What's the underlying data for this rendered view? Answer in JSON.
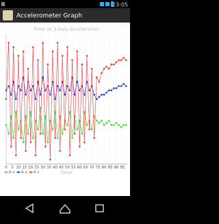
{
  "status_bar": {
    "time": "23:05"
  },
  "app_bar": {
    "title": "Accelerometer Graph"
  },
  "chart_data": {
    "type": "line",
    "title": "Time vs 3-Axis Acceleration",
    "x_label": "Time",
    "x": [
      0,
      2,
      4,
      6,
      8,
      10,
      12,
      14,
      16,
      18,
      20,
      22,
      24,
      26,
      28,
      30,
      32,
      34,
      36,
      38,
      40,
      42,
      44,
      46,
      48,
      50,
      52,
      54,
      56,
      58,
      60,
      62,
      64,
      66,
      68,
      70,
      72,
      74,
      76,
      78,
      80,
      82,
      84,
      86,
      88,
      90,
      92,
      94,
      96,
      98
    ],
    "series": [
      {
        "name": "A x",
        "color": "#33dd33",
        "values": [
          -1,
          -3,
          1,
          -4,
          2,
          -2,
          0,
          -5,
          1,
          -3,
          2,
          -4,
          0,
          -2,
          3,
          -3,
          1,
          -5,
          0,
          -2,
          2,
          -4,
          1,
          -3,
          0,
          -1,
          2,
          -4,
          1,
          -2,
          0,
          -3,
          2,
          -1,
          0,
          -2,
          1,
          0,
          -0.5,
          0,
          -1,
          -0.5,
          0,
          -1,
          -1,
          -0.5,
          -1,
          -1.5,
          -1,
          -1
        ]
      },
      {
        "name": "A y",
        "color": "#2233dd",
        "values": [
          7,
          8,
          6,
          9,
          5,
          8,
          7,
          10,
          6,
          9,
          7,
          8,
          5,
          9,
          6,
          10,
          7,
          8,
          6,
          9,
          5,
          8,
          7,
          9,
          6,
          8,
          7,
          10,
          6,
          9,
          7,
          8,
          6,
          9,
          7,
          8,
          6,
          5,
          5.5,
          6,
          6,
          6.5,
          7,
          7,
          7.5,
          7.5,
          8,
          8,
          8.5,
          8
        ]
      },
      {
        "name": "A z",
        "color": "#ee3333",
        "values": [
          5,
          18,
          -6,
          17,
          -8,
          15,
          -4,
          16,
          -7,
          12,
          -5,
          17,
          -8,
          14,
          -3,
          18,
          -6,
          13,
          -9,
          16,
          -4,
          18,
          -7,
          15,
          -2,
          17,
          -8,
          14,
          -3,
          16,
          -6,
          13,
          -5,
          15,
          -2,
          12,
          -4,
          10,
          9,
          11,
          12,
          12.5,
          12,
          13,
          13,
          13.5,
          14,
          14,
          14.5,
          14
        ]
      }
    ],
    "xlim": [
      0,
      99
    ],
    "xticks": [
      0,
      5,
      10,
      15,
      20,
      25,
      30,
      35,
      40,
      45,
      50,
      55,
      60,
      65,
      70,
      75,
      80,
      85,
      90,
      95
    ],
    "ylim": [
      -10,
      20
    ],
    "grid": true
  }
}
